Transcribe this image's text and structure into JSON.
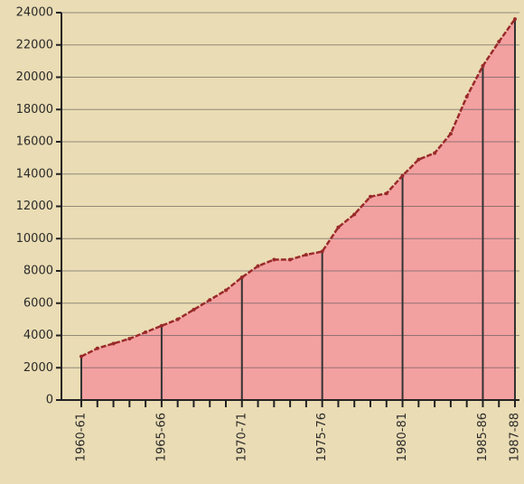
{
  "chart_data": {
    "type": "area",
    "categories": [
      "1960-61",
      null,
      null,
      null,
      null,
      "1965-66",
      null,
      null,
      null,
      null,
      "1970-71",
      null,
      null,
      null,
      null,
      "1975-76",
      null,
      null,
      null,
      null,
      "1980-81",
      null,
      null,
      null,
      null,
      "1985-86",
      null,
      "1987-88"
    ],
    "values": [
      2700,
      3200,
      3500,
      3800,
      4200,
      4600,
      5000,
      5600,
      6200,
      6800,
      7600,
      8300,
      8700,
      8700,
      9000,
      9200,
      10700,
      11500,
      12600,
      12800,
      13900,
      14900,
      15300,
      16500,
      18800,
      20700,
      22200,
      23600
    ],
    "color": "#f3a0a0",
    "line_color": "#9a2a2a",
    "ylim": [
      0,
      24000
    ],
    "yticks": [
      0,
      2000,
      4000,
      6000,
      8000,
      10000,
      12000,
      14000,
      16000,
      18000,
      20000,
      22000,
      24000
    ],
    "grid": true
  }
}
